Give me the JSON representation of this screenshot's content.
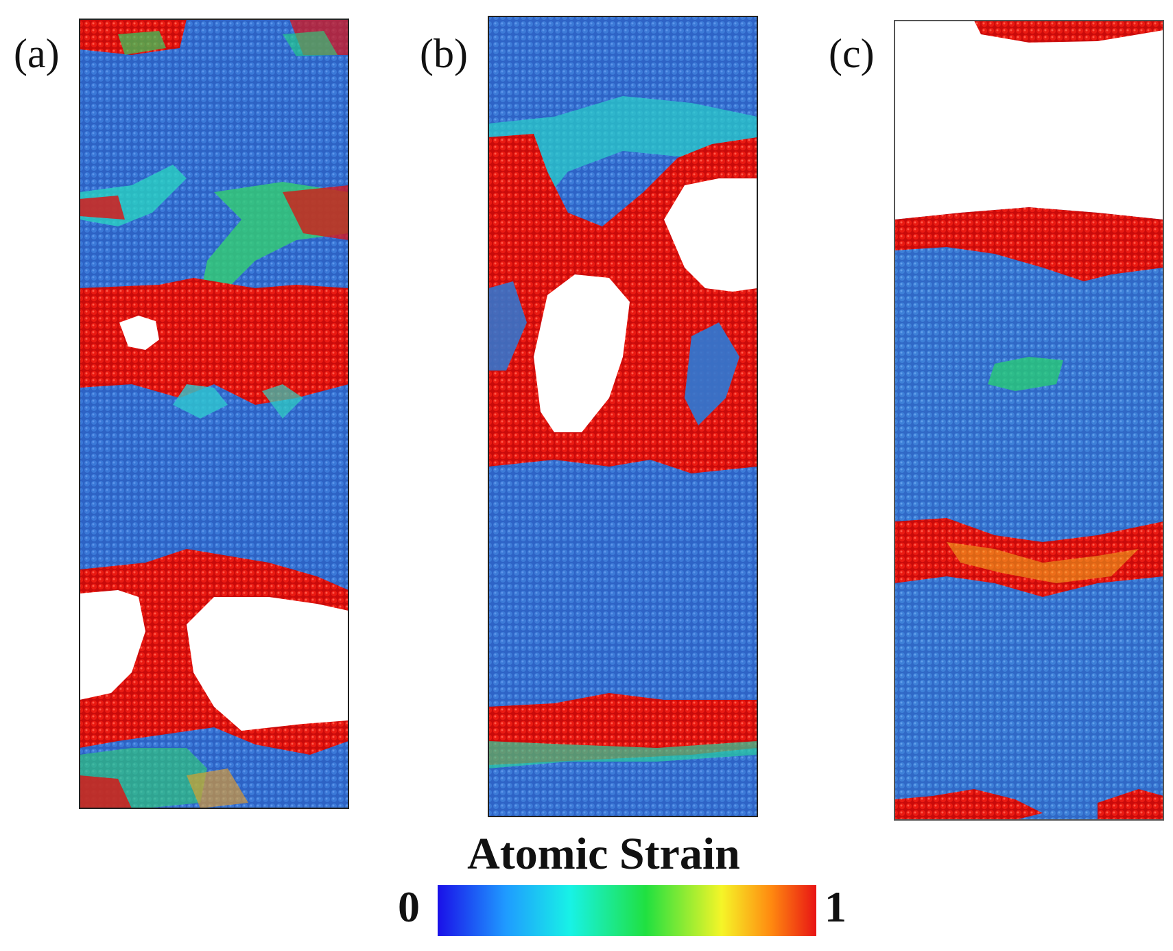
{
  "panels": [
    {
      "label": "(a)"
    },
    {
      "label": "(b)"
    },
    {
      "label": "(c)"
    }
  ],
  "colorbar": {
    "title": "Atomic Strain",
    "min_label": "0",
    "max_label": "1",
    "colors": [
      "#1a10e8",
      "#1f9bff",
      "#18f2e6",
      "#20e040",
      "#f5f528",
      "#ff8a10",
      "#e81414"
    ]
  },
  "colors": {
    "bulk_blue": "#2f68c8",
    "high_strain_red": "#e01010",
    "frame": "#222222",
    "void": "#ffffff"
  }
}
